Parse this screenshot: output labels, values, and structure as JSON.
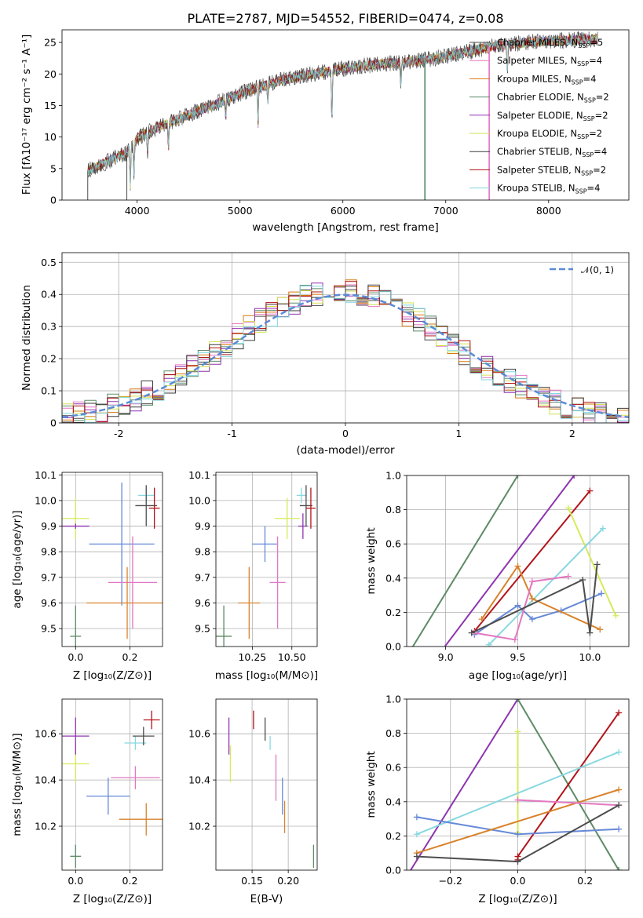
{
  "title": "PLATE=2787, MJD=54552, FIBERID=0474, z=0.08",
  "model_colors": [
    "#4d4d4d",
    "#e377c2",
    "#d4780f",
    "#5a8a6a",
    "#9030b0",
    "#d2e050",
    "#3a3a3a",
    "#b01010",
    "#80d8e0"
  ],
  "estimate_colors": [
    "#4d4d4d",
    "#e377c2",
    "#d9822b",
    "#5e8a66",
    "#8e35b0",
    "#d6ea5c",
    "#4d4d4d",
    "#b3141a",
    "#88d8e0",
    "#6689d8"
  ],
  "chart_data": [
    {
      "id": "spectrum",
      "type": "line",
      "xlabel": "wavelength [Angstrom, rest frame]",
      "ylabel": "Flux [fλ10⁻¹⁷ erg cm⁻² s⁻¹ A⁻¹]",
      "xlim": [
        3270,
        8780
      ],
      "ylim": [
        0,
        27
      ],
      "xticks": [
        4000,
        5000,
        6000,
        7000,
        8000
      ],
      "yticks": [
        0,
        5,
        10,
        15,
        20,
        25
      ],
      "legend_position": "top-right",
      "legend": [
        {
          "label": "Chabrier MILES, N",
          "sub": "SSP",
          "suffix": "=5"
        },
        {
          "label": "Salpeter MILES, N",
          "sub": "SSP",
          "suffix": "=4"
        },
        {
          "label": "Kroupa MILES, N",
          "sub": "SSP",
          "suffix": "=4"
        },
        {
          "label": "Chabrier ELODIE, N",
          "sub": "SSP",
          "suffix": "=2"
        },
        {
          "label": "Salpeter ELODIE, N",
          "sub": "SSP",
          "suffix": "=2"
        },
        {
          "label": "Kroupa ELODIE, N",
          "sub": "SSP",
          "suffix": "=2"
        },
        {
          "label": "Chabrier STELIB, N",
          "sub": "SSP",
          "suffix": "=4"
        },
        {
          "label": "Salpeter STELIB, N",
          "sub": "SSP",
          "suffix": "=2"
        },
        {
          "label": "Kroupa STELIB, N",
          "sub": "SSP",
          "suffix": "=4"
        }
      ],
      "continuum": {
        "x": [
          3500,
          3700,
          3900,
          4000,
          4200,
          4500,
          4800,
          5100,
          5400,
          5700,
          6000,
          6300,
          6600,
          6900,
          7200,
          7500,
          7800,
          8100,
          8400
        ],
        "y": [
          4.5,
          6.0,
          7.5,
          9.8,
          11.5,
          13.5,
          15.5,
          17.5,
          19.0,
          20.0,
          20.8,
          21.5,
          21.8,
          22.5,
          23.5,
          24.5,
          25.0,
          25.3,
          25.5
        ]
      },
      "wavelength_range": [
        3520,
        8480
      ],
      "absorption_lines": [
        [
          3934,
          6
        ],
        [
          3969,
          5
        ],
        [
          4102,
          3
        ],
        [
          4304,
          4
        ],
        [
          4861,
          3
        ],
        [
          5175,
          6
        ],
        [
          5270,
          3
        ],
        [
          5893,
          8
        ],
        [
          6563,
          3
        ],
        [
          7600,
          4
        ]
      ],
      "gaps": [
        [
          3520,
          3900,
          0
        ],
        [
          6795,
          6800,
          3
        ],
        [
          7420,
          7425,
          1
        ]
      ]
    },
    {
      "id": "residual-histogram",
      "type": "bar",
      "xlabel": "(data-model)/error",
      "ylabel": "Normed distribution",
      "xlim": [
        -2.5,
        2.5
      ],
      "ylim": [
        0,
        0.53
      ],
      "xticks": [
        -2,
        -1,
        0,
        1,
        2
      ],
      "yticks": [
        0.0,
        0.1,
        0.2,
        0.3,
        0.4,
        0.5
      ],
      "grid": true,
      "legend_position": "top-right",
      "reference": {
        "name": "𝒩(0, 1)",
        "type": "normal",
        "mean": 0,
        "sd": 1
      },
      "bin_width": 0.1
    },
    {
      "id": "age-vs-z",
      "type": "scatter",
      "xlabel": "Z [log₁₀(Z/Z⊙)]",
      "ylabel": "age  [log₁₀(age/yr)]",
      "xlim": [
        -0.05,
        0.32
      ],
      "ylim": [
        9.43,
        10.11
      ],
      "xticks": [
        0.0,
        0.2
      ],
      "yticks": [
        9.5,
        9.6,
        9.7,
        9.8,
        9.9,
        10.0,
        10.1
      ],
      "grid": true,
      "points": [
        {
          "x": 0.0,
          "xerr": 0.02,
          "y": 9.47,
          "yerr": 0.12,
          "c": 3
        },
        {
          "x": 0.0,
          "xerr": 0.05,
          "y": 9.93,
          "yerr": 0.08,
          "c": 5
        },
        {
          "x": 0.0,
          "xerr": 0.05,
          "y": 9.9,
          "yerr": 0.01,
          "c": 4
        },
        {
          "x": 0.17,
          "xerr": 0.12,
          "y": 9.83,
          "yerr": 0.24,
          "c": 9
        },
        {
          "x": 0.21,
          "xerr": 0.09,
          "y": 9.68,
          "yerr": 0.18,
          "c": 1
        },
        {
          "x": 0.19,
          "xerr": 0.15,
          "y": 9.6,
          "yerr": 0.14,
          "c": 2
        },
        {
          "x": 0.26,
          "xerr": 0.03,
          "y": 10.02,
          "yerr": 0.03,
          "c": 8
        },
        {
          "x": 0.26,
          "xerr": 0.04,
          "y": 9.98,
          "yerr": 0.08,
          "c": 6
        },
        {
          "x": 0.29,
          "xerr": 0.02,
          "y": 9.97,
          "yerr": 0.08,
          "c": 7
        }
      ]
    },
    {
      "id": "age-vs-mass",
      "type": "scatter",
      "xlabel": "mass [log₁₀(M/M⊙)]",
      "xlim": [
        10.02,
        10.66
      ],
      "ylim": [
        9.43,
        10.11
      ],
      "xticks": [
        10.25,
        10.5
      ],
      "xticklabels": [
        "10.25",
        "10.50"
      ],
      "yticks": [
        9.5,
        9.6,
        9.7,
        9.8,
        9.9,
        10.0,
        10.1
      ],
      "grid": true,
      "points": [
        {
          "x": 10.07,
          "xerr": 0.05,
          "y": 9.47,
          "yerr": 0.12,
          "c": 3
        },
        {
          "x": 10.47,
          "xerr": 0.08,
          "y": 9.93,
          "yerr": 0.08,
          "c": 5
        },
        {
          "x": 10.57,
          "xerr": 0.03,
          "y": 9.9,
          "yerr": 0.05,
          "c": 4
        },
        {
          "x": 10.33,
          "xerr": 0.08,
          "y": 9.83,
          "yerr": 0.07,
          "c": 9
        },
        {
          "x": 10.41,
          "xerr": 0.05,
          "y": 9.68,
          "yerr": 0.18,
          "c": 1
        },
        {
          "x": 10.23,
          "xerr": 0.07,
          "y": 9.6,
          "yerr": 0.14,
          "c": 2
        },
        {
          "x": 10.56,
          "xerr": 0.03,
          "y": 10.02,
          "yerr": 0.03,
          "c": 8
        },
        {
          "x": 10.59,
          "xerr": 0.04,
          "y": 9.98,
          "yerr": 0.08,
          "c": 6
        },
        {
          "x": 10.62,
          "xerr": 0.03,
          "y": 9.97,
          "yerr": 0.08,
          "c": 7
        }
      ]
    },
    {
      "id": "mass-weight-vs-age",
      "type": "line",
      "xlabel": "age  [log₁₀(age/yr)]",
      "ylabel": "mass weight",
      "xlim": [
        8.73,
        10.27
      ],
      "ylim": [
        0,
        1
      ],
      "xticks": [
        9.0,
        9.5,
        10.0
      ],
      "xticklabels": [
        "9.0",
        "9.5",
        "10.0"
      ],
      "yticks": [
        0.0,
        0.2,
        0.4,
        0.6,
        0.8,
        1.0
      ],
      "grid": true,
      "series": [
        {
          "c": 3,
          "x": [
            8.7,
            9.5
          ],
          "y": [
            -0.1,
            1.0
          ]
        },
        {
          "c": 4,
          "x": [
            8.95,
            9.89
          ],
          "y": [
            -0.05,
            1.0
          ]
        },
        {
          "c": 7,
          "x": [
            9.2,
            10.0
          ],
          "y": [
            0.09,
            0.91
          ]
        },
        {
          "c": 5,
          "x": [
            9.85,
            10.18
          ],
          "y": [
            0.81,
            0.18
          ]
        },
        {
          "c": 8,
          "x": [
            9.3,
            10.09
          ],
          "y": [
            0.01,
            0.69
          ]
        },
        {
          "c": 9,
          "x": [
            9.2,
            9.5,
            9.6,
            9.8,
            10.08
          ],
          "y": [
            0.07,
            0.24,
            0.16,
            0.21,
            0.31
          ]
        },
        {
          "c": 2,
          "x": [
            9.25,
            9.5,
            9.6,
            10.07
          ],
          "y": [
            0.16,
            0.47,
            0.28,
            0.1
          ]
        },
        {
          "c": 1,
          "x": [
            9.2,
            9.48,
            9.6,
            9.85
          ],
          "y": [
            0.08,
            0.04,
            0.38,
            0.41
          ]
        },
        {
          "c": 6,
          "x": [
            9.18,
            9.95,
            10.0,
            10.05
          ],
          "y": [
            0.08,
            0.39,
            0.08,
            0.48
          ]
        }
      ]
    },
    {
      "id": "mass-vs-z",
      "type": "scatter",
      "xlabel": "Z [log₁₀(Z/Z⊙)]",
      "ylabel": "mass [log₁₀(M/M⊙)]",
      "xlim": [
        -0.05,
        0.32
      ],
      "ylim": [
        10.01,
        10.75
      ],
      "xticks": [
        0.0,
        0.2
      ],
      "yticks": [
        10.2,
        10.4,
        10.6
      ],
      "grid": true,
      "points": [
        {
          "x": 0.0,
          "xerr": 0.02,
          "y": 10.07,
          "yerr": 0.05,
          "c": 3
        },
        {
          "x": 0.0,
          "xerr": 0.05,
          "y": 10.47,
          "yerr": 0.08,
          "c": 5
        },
        {
          "x": 0.0,
          "xerr": 0.05,
          "y": 10.59,
          "yerr": 0.08,
          "c": 4
        },
        {
          "x": 0.12,
          "xerr": 0.08,
          "y": 10.33,
          "yerr": 0.08,
          "c": 9
        },
        {
          "x": 0.22,
          "xerr": 0.09,
          "y": 10.41,
          "yerr": 0.05,
          "c": 1
        },
        {
          "x": 0.26,
          "xerr": 0.1,
          "y": 10.23,
          "yerr": 0.07,
          "c": 2
        },
        {
          "x": 0.22,
          "xerr": 0.04,
          "y": 10.56,
          "yerr": 0.03,
          "c": 8
        },
        {
          "x": 0.25,
          "xerr": 0.04,
          "y": 10.59,
          "yerr": 0.04,
          "c": 6
        },
        {
          "x": 0.28,
          "xerr": 0.03,
          "y": 10.66,
          "yerr": 0.04,
          "c": 7
        }
      ]
    },
    {
      "id": "mass-vs-ebv",
      "type": "scatter",
      "xlabel": "E(B-V)",
      "xlim": [
        0.1,
        0.24
      ],
      "ylim": [
        10.01,
        10.75
      ],
      "xticks": [
        0.15,
        0.2
      ],
      "xticklabels": [
        "0.15",
        "0.20"
      ],
      "yticks": [
        10.2,
        10.4,
        10.6
      ],
      "grid": true,
      "points": [
        {
          "x": 0.235,
          "xerr": 0,
          "y": 10.07,
          "yerr": 0.05,
          "c": 3
        },
        {
          "x": 0.12,
          "xerr": 0,
          "y": 10.47,
          "yerr": 0.08,
          "c": 5
        },
        {
          "x": 0.118,
          "xerr": 0,
          "y": 10.59,
          "yerr": 0.08,
          "c": 4
        },
        {
          "x": 0.192,
          "xerr": 0,
          "y": 10.33,
          "yerr": 0.08,
          "c": 9
        },
        {
          "x": 0.183,
          "xerr": 0,
          "y": 10.41,
          "yerr": 0.1,
          "c": 1
        },
        {
          "x": 0.195,
          "xerr": 0,
          "y": 10.24,
          "yerr": 0.07,
          "c": 2
        },
        {
          "x": 0.175,
          "xerr": 0,
          "y": 10.56,
          "yerr": 0.03,
          "c": 8
        },
        {
          "x": 0.168,
          "xerr": 0,
          "y": 10.62,
          "yerr": 0.05,
          "c": 6
        },
        {
          "x": 0.152,
          "xerr": 0,
          "y": 10.66,
          "yerr": 0.04,
          "c": 7
        }
      ]
    },
    {
      "id": "mass-weight-vs-z",
      "type": "line",
      "xlabel": "Z [log₁₀(Z/Z⊙)]",
      "ylabel": "mass weight",
      "xlim": [
        -0.33,
        0.33
      ],
      "ylim": [
        0,
        1
      ],
      "xticks": [
        -0.2,
        0.0,
        0.2
      ],
      "xticklabels": [
        "−0.2",
        "0.0",
        "0.2"
      ],
      "yticks": [
        0.0,
        0.2,
        0.4,
        0.6,
        0.8,
        1.0
      ],
      "grid": true,
      "series": [
        {
          "c": 4,
          "x": [
            -0.35,
            0.0
          ],
          "y": [
            -0.1,
            1.0
          ]
        },
        {
          "c": 3,
          "x": [
            0.0,
            0.3
          ],
          "y": [
            1.0,
            0.0
          ]
        },
        {
          "c": 7,
          "x": [
            0.0,
            0.0,
            0.3
          ],
          "y": [
            0.06,
            0.08,
            0.92
          ]
        },
        {
          "c": 5,
          "x": [
            0.0,
            0.0
          ],
          "y": [
            0.22,
            0.81
          ]
        },
        {
          "c": 8,
          "x": [
            -0.3,
            0.3
          ],
          "y": [
            0.21,
            0.69
          ]
        },
        {
          "c": 9,
          "x": [
            -0.3,
            0.0,
            0.3
          ],
          "y": [
            0.31,
            0.21,
            0.24
          ]
        },
        {
          "c": 2,
          "x": [
            -0.3,
            0.3
          ],
          "y": [
            0.1,
            0.47
          ]
        },
        {
          "c": 1,
          "x": [
            0.0,
            0.3
          ],
          "y": [
            0.41,
            0.38
          ]
        },
        {
          "c": 6,
          "x": [
            -0.3,
            0.0,
            0.3
          ],
          "y": [
            0.08,
            0.05,
            0.38
          ]
        }
      ]
    }
  ]
}
